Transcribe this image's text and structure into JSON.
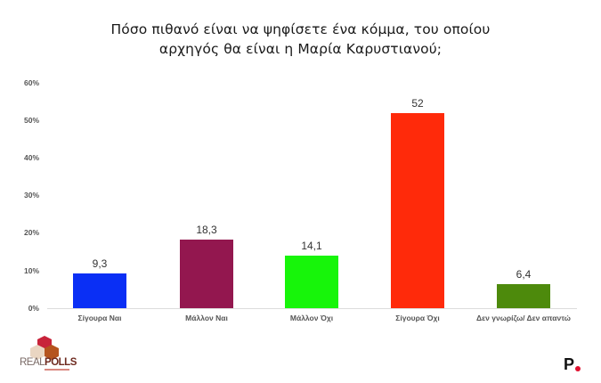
{
  "title_line1": "Πόσο πιθανό είναι να ψηφίσετε ένα κόμμα, του οποίου",
  "title_line2": "αρχηγός θα είναι η Μαρία Καρυστιανού;",
  "y_ticks": [
    "60%",
    "50%",
    "40%",
    "30%",
    "20%",
    "10%",
    "0%"
  ],
  "bars": [
    {
      "label": "Σίγουρα Ναι",
      "value_label": "9,3",
      "value": 9.3,
      "color": "#0a2ff5"
    },
    {
      "label": "Μάλλον Ναι",
      "value_label": "18,3",
      "value": 18.3,
      "color": "#93174f"
    },
    {
      "label": "Μάλλον Όχι",
      "value_label": "14,1",
      "value": 14.1,
      "color": "#17f50a"
    },
    {
      "label": "Σίγουρα Όχι",
      "value_label": "52",
      "value": 52,
      "color": "#ff2a0a"
    },
    {
      "label": "Δεν γνωρίζω/ Δεν απαντώ",
      "value_label": "6,4",
      "value": 6.4,
      "color": "#4d8a0c"
    }
  ],
  "logos": {
    "left_brand_a": "REAL",
    "left_brand_b": "POLLS",
    "right_brand": "P"
  },
  "chart_data": {
    "type": "bar",
    "title": "Πόσο πιθανό είναι να ψηφίσετε ένα κόμμα, του οποίου αρχηγός θα είναι η Μαρία Καρυστιανού;",
    "categories": [
      "Σίγουρα Ναι",
      "Μάλλον Ναι",
      "Μάλλον Όχι",
      "Σίγουρα Όχι",
      "Δεν γνωρίζω/ Δεν απαντώ"
    ],
    "values": [
      9.3,
      18.3,
      14.1,
      52,
      6.4
    ],
    "colors": [
      "#0a2ff5",
      "#93174f",
      "#17f50a",
      "#ff2a0a",
      "#4d8a0c"
    ],
    "xlabel": "",
    "ylabel": "",
    "ylim": [
      0,
      60
    ],
    "y_tick_labels": [
      "0%",
      "10%",
      "20%",
      "30%",
      "40%",
      "50%",
      "60%"
    ],
    "grid": false,
    "legend": "none",
    "data_labels": [
      "9,3",
      "18,3",
      "14,1",
      "52",
      "6,4"
    ]
  }
}
